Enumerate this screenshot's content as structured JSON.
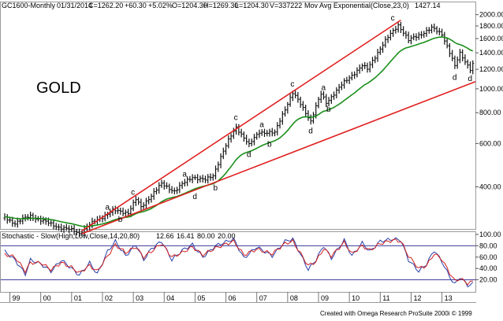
{
  "header": {
    "symbol": "GC1600-Monthly",
    "date": "01/31/2014",
    "close": "C=1262.20",
    "change": "+60.30",
    "pct": "+5.02%",
    "open": "O=1204.30",
    "high": "H=1269.30",
    "low": "L=1204.30",
    "volume": "V=337222",
    "ma_label": "Mov Avg Exponential(Close,23,0)",
    "ma_value": "1427.14"
  },
  "chart_title": "GOLD",
  "stochastic": {
    "label": "Stochastic - Slow(High,Low,Close,14,20,80)",
    "k_value": "12.66",
    "d_value": "16.41",
    "upper": "80.00",
    "lower": "20.00"
  },
  "credit": "Created with Omega Research ProSuite 2000i © 1999",
  "colors": {
    "price_bar": "#111111",
    "ma": "#1a8f1a",
    "trend": "#e02020",
    "stoch_k": "#2a3ea8",
    "stoch_d": "#d02020",
    "guide": "#3a3a9a",
    "background": "#ffffff"
  },
  "chart_data": [
    {
      "type": "ohlc",
      "frequency": "monthly",
      "y_scale": "log",
      "ylim": [
        280,
        2100
      ],
      "x_start": "1998-11",
      "x_end": "2014-02",
      "yticks": [
        400,
        600,
        800,
        1000,
        1200,
        1400,
        1600,
        1800,
        2000
      ],
      "ytick_labels": [
        "400.00",
        "600.00",
        "800.00",
        "1000.00",
        "1200.00",
        "1400.00",
        "1600.00",
        "1800.00",
        "2000.00"
      ],
      "xtick_labels": [
        "99",
        "00",
        "01",
        "02",
        "03",
        "04",
        "05",
        "06",
        "07",
        "08",
        "09",
        "10",
        "11",
        "12",
        "13"
      ],
      "grid": false,
      "anchors": [
        [
          "1998-11",
          300
        ],
        [
          "1999-03",
          285
        ],
        [
          "1999-09",
          305
        ],
        [
          "2000-02",
          290
        ],
        [
          "2000-08",
          275
        ],
        [
          "2001-02",
          265
        ],
        [
          "2001-04",
          260
        ],
        [
          "2001-09",
          285
        ],
        [
          "2002-05",
          320
        ],
        [
          "2002-11",
          315
        ],
        [
          "2003-02",
          355
        ],
        [
          "2003-04",
          330
        ],
        [
          "2003-12",
          410
        ],
        [
          "2004-05",
          385
        ],
        [
          "2004-12",
          440
        ],
        [
          "2005-05",
          425
        ],
        [
          "2005-08",
          445
        ],
        [
          "2006-05",
          700
        ],
        [
          "2006-10",
          590
        ],
        [
          "2007-02",
          670
        ],
        [
          "2007-08",
          660
        ],
        [
          "2008-03",
          960
        ],
        [
          "2008-10",
          740
        ],
        [
          "2009-02",
          950
        ],
        [
          "2009-04",
          880
        ],
        [
          "2010-06",
          1240
        ],
        [
          "2010-08",
          1200
        ],
        [
          "2011-08",
          1820
        ],
        [
          "2011-12",
          1570
        ],
        [
          "2012-09",
          1760
        ],
        [
          "2013-01",
          1670
        ],
        [
          "2013-06",
          1230
        ],
        [
          "2013-08",
          1390
        ],
        [
          "2013-12",
          1205
        ],
        [
          "2014-01",
          1262
        ]
      ],
      "ma_label": "Mov Avg Exponential(Close,23,0)",
      "ma_last": 1427.14,
      "trendlines": [
        {
          "from": [
            "2001-05",
            265
          ],
          "to": [
            "2011-09",
            1900
          ]
        },
        {
          "from": [
            "2001-05",
            258
          ],
          "to": [
            "2014-02",
            1070
          ]
        }
      ],
      "wave_labels": [
        {
          "text": "a",
          "x": "2002-03",
          "y": 330
        },
        {
          "text": "b",
          "x": "2002-08",
          "y": 295
        },
        {
          "text": "c",
          "x": "2003-01",
          "y": 380
        },
        {
          "text": "a",
          "x": "2004-09",
          "y": 450
        },
        {
          "text": "d",
          "x": "2005-01",
          "y": 365
        },
        {
          "text": "b",
          "x": "2005-09",
          "y": 395
        },
        {
          "text": "c",
          "x": "2006-05",
          "y": 765
        },
        {
          "text": "d",
          "x": "2006-10",
          "y": 540
        },
        {
          "text": "a",
          "x": "2007-03",
          "y": 715
        },
        {
          "text": "b",
          "x": "2007-06",
          "y": 595
        },
        {
          "text": "c",
          "x": "2008-03",
          "y": 1045
        },
        {
          "text": "d",
          "x": "2008-10",
          "y": 675
        },
        {
          "text": "a",
          "x": "2009-03",
          "y": 1010
        },
        {
          "text": "b",
          "x": "2009-05",
          "y": 825
        },
        {
          "text": "c",
          "x": "2011-06",
          "y": 1940
        },
        {
          "text": "d",
          "x": "2013-06",
          "y": 1110
        },
        {
          "text": "d",
          "x": "2013-12",
          "y": 1100
        }
      ]
    },
    {
      "type": "line",
      "title": "Stochastic - Slow(High,Low,Close,14,20,80)",
      "ylim": [
        0,
        100
      ],
      "yticks": [
        20,
        40,
        60,
        80,
        100
      ],
      "ytick_labels": [
        "20.00",
        "40.00",
        "60.00",
        "80.00",
        "100.00"
      ],
      "guides": [
        20,
        80
      ],
      "series": [
        {
          "name": "12.66",
          "anchors": [
            [
              "1998-11",
              70
            ],
            [
              "1999-03",
              55
            ],
            [
              "1999-07",
              30
            ],
            [
              "1999-09",
              55
            ],
            [
              "2000-01",
              48
            ],
            [
              "2000-05",
              35
            ],
            [
              "2000-09",
              55
            ],
            [
              "2001-01",
              40
            ],
            [
              "2001-04",
              28
            ],
            [
              "2001-08",
              50
            ],
            [
              "2001-11",
              30
            ],
            [
              "2002-03",
              70
            ],
            [
              "2002-06",
              88
            ],
            [
              "2002-10",
              62
            ],
            [
              "2003-02",
              82
            ],
            [
              "2003-05",
              55
            ],
            [
              "2003-08",
              75
            ],
            [
              "2003-12",
              88
            ],
            [
              "2004-04",
              55
            ],
            [
              "2004-08",
              72
            ],
            [
              "2004-12",
              82
            ],
            [
              "2005-04",
              60
            ],
            [
              "2005-09",
              80
            ],
            [
              "2006-04",
              92
            ],
            [
              "2006-08",
              58
            ],
            [
              "2007-01",
              78
            ],
            [
              "2007-07",
              62
            ],
            [
              "2007-12",
              88
            ],
            [
              "2008-03",
              92
            ],
            [
              "2008-09",
              38
            ],
            [
              "2008-12",
              55
            ],
            [
              "2009-03",
              80
            ],
            [
              "2009-06",
              58
            ],
            [
              "2009-11",
              90
            ],
            [
              "2010-02",
              62
            ],
            [
              "2010-06",
              85
            ],
            [
              "2010-09",
              70
            ],
            [
              "2011-01",
              88
            ],
            [
              "2011-06",
              92
            ],
            [
              "2011-09",
              90
            ],
            [
              "2011-12",
              55
            ],
            [
              "2012-04",
              35
            ],
            [
              "2012-07",
              48
            ],
            [
              "2012-10",
              72
            ],
            [
              "2013-01",
              52
            ],
            [
              "2013-04",
              25
            ],
            [
              "2013-06",
              12
            ],
            [
              "2013-08",
              25
            ],
            [
              "2013-11",
              10
            ],
            [
              "2014-01",
              12.66
            ]
          ]
        },
        {
          "name": "16.41",
          "anchors": [
            [
              "1998-11",
              65
            ],
            [
              "1999-03",
              60
            ],
            [
              "1999-07",
              35
            ],
            [
              "1999-09",
              50
            ],
            [
              "2000-01",
              50
            ],
            [
              "2000-05",
              38
            ],
            [
              "2000-09",
              50
            ],
            [
              "2001-01",
              42
            ],
            [
              "2001-04",
              32
            ],
            [
              "2001-08",
              45
            ],
            [
              "2001-11",
              35
            ],
            [
              "2002-03",
              62
            ],
            [
              "2002-06",
              82
            ],
            [
              "2002-10",
              68
            ],
            [
              "2003-02",
              78
            ],
            [
              "2003-05",
              60
            ],
            [
              "2003-08",
              70
            ],
            [
              "2003-12",
              84
            ],
            [
              "2004-04",
              60
            ],
            [
              "2004-08",
              68
            ],
            [
              "2004-12",
              78
            ],
            [
              "2005-04",
              64
            ],
            [
              "2005-09",
              76
            ],
            [
              "2006-04",
              88
            ],
            [
              "2006-08",
              64
            ],
            [
              "2007-01",
              74
            ],
            [
              "2007-07",
              66
            ],
            [
              "2007-12",
              84
            ],
            [
              "2008-03",
              88
            ],
            [
              "2008-09",
              45
            ],
            [
              "2008-12",
              52
            ],
            [
              "2009-03",
              75
            ],
            [
              "2009-06",
              62
            ],
            [
              "2009-11",
              86
            ],
            [
              "2010-02",
              66
            ],
            [
              "2010-06",
              80
            ],
            [
              "2010-09",
              72
            ],
            [
              "2011-01",
              84
            ],
            [
              "2011-06",
              90
            ],
            [
              "2011-09",
              88
            ],
            [
              "2011-12",
              62
            ],
            [
              "2012-04",
              40
            ],
            [
              "2012-07",
              45
            ],
            [
              "2012-10",
              66
            ],
            [
              "2013-01",
              56
            ],
            [
              "2013-04",
              32
            ],
            [
              "2013-06",
              18
            ],
            [
              "2013-08",
              22
            ],
            [
              "2013-11",
              14
            ],
            [
              "2014-01",
              16.41
            ]
          ]
        }
      ]
    }
  ]
}
